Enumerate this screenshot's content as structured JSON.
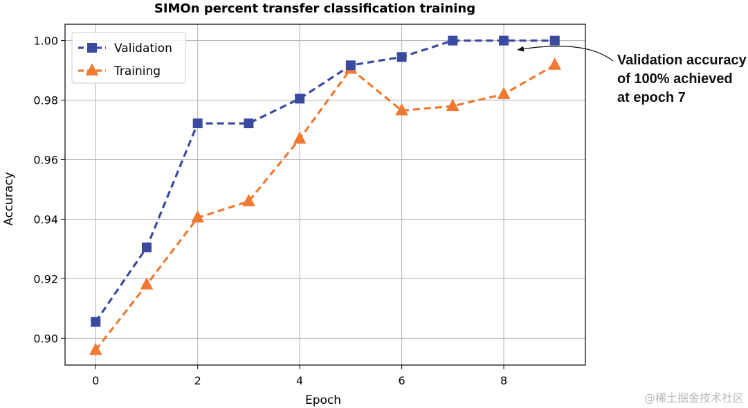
{
  "chart_data": {
    "type": "line",
    "title": "SIMOn percent transfer classification training",
    "xlabel": "Epoch",
    "ylabel": "Accuracy",
    "xlim": [
      -0.6,
      9.6
    ],
    "ylim": [
      0.891,
      1.0055
    ],
    "xticks": [
      0,
      2,
      4,
      6,
      8
    ],
    "yticks": [
      0.9,
      0.92,
      0.94,
      0.96,
      0.98,
      1.0
    ],
    "xtick_labels": [
      "0",
      "2",
      "4",
      "6",
      "8"
    ],
    "ytick_labels": [
      "0.90",
      "0.92",
      "0.94",
      "0.96",
      "0.98",
      "1.00"
    ],
    "grid": true,
    "legend_position": "top-left",
    "series": [
      {
        "name": "Validation",
        "color": "#3a4a9e",
        "marker": "square",
        "line_style": "dashed",
        "x": [
          0,
          1,
          2,
          3,
          4,
          5,
          6,
          7,
          8,
          9
        ],
        "values": [
          0.9055,
          0.9305,
          0.9722,
          0.9722,
          0.9805,
          0.9917,
          0.9945,
          1.0,
          1.0,
          1.0
        ]
      },
      {
        "name": "Training",
        "color": "#f07830",
        "marker": "triangle",
        "line_style": "dashed",
        "x": [
          0,
          1,
          2,
          3,
          4,
          5,
          6,
          7,
          8,
          9
        ],
        "values": [
          0.896,
          0.918,
          0.9405,
          0.946,
          0.967,
          0.9905,
          0.9765,
          0.978,
          0.982,
          0.9918
        ]
      }
    ],
    "annotations": [
      {
        "text_lines": [
          "Validation accuracy",
          "of 100% achieved",
          "at epoch 7"
        ],
        "target_x": 8,
        "target_y": 1.0
      }
    ]
  },
  "watermark": "@稀土掘金技术社区"
}
